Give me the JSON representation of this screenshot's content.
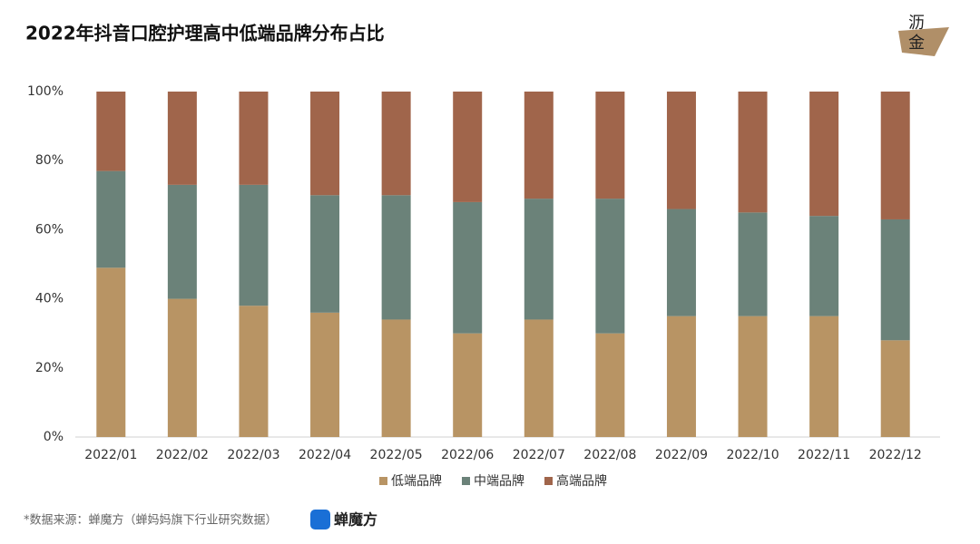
{
  "chart_data": {
    "type": "stacked_bar",
    "title": "2022年抖音口腔护理高中低端品牌分布占比",
    "logo": [
      "沥",
      "金"
    ],
    "source": "*数据来源：蝉魔方（蝉妈妈旗下行业研究数据）",
    "source_logo": "蝉魔方",
    "categories": [
      "2022/01",
      "2022/02",
      "2022/03",
      "2022/04",
      "2022/05",
      "2022/06",
      "2022/07",
      "2022/08",
      "2022/09",
      "2022/10",
      "2022/11",
      "2022/12"
    ],
    "series": [
      {
        "name": "低端品牌",
        "color": "#b89464",
        "values": [
          49,
          40,
          38,
          36,
          34,
          30,
          34,
          30,
          35,
          35,
          35,
          28
        ]
      },
      {
        "name": "中端品牌",
        "color": "#6b8279",
        "values": [
          28,
          33,
          35,
          34,
          36,
          38,
          35,
          39,
          31,
          30,
          29,
          35
        ]
      },
      {
        "name": "高端品牌",
        "color": "#a0654b",
        "values": [
          23,
          27,
          27,
          30,
          30,
          32,
          31,
          31,
          34,
          35,
          36,
          37
        ]
      }
    ],
    "ylim": [
      0,
      100
    ],
    "yticks": [
      {
        "value": 0,
        "label": "0%"
      },
      {
        "value": 20,
        "label": "20%"
      },
      {
        "value": 40,
        "label": "40%"
      },
      {
        "value": 60,
        "label": "60%"
      },
      {
        "value": 80,
        "label": "80%"
      },
      {
        "value": 100,
        "label": "100%"
      }
    ]
  }
}
